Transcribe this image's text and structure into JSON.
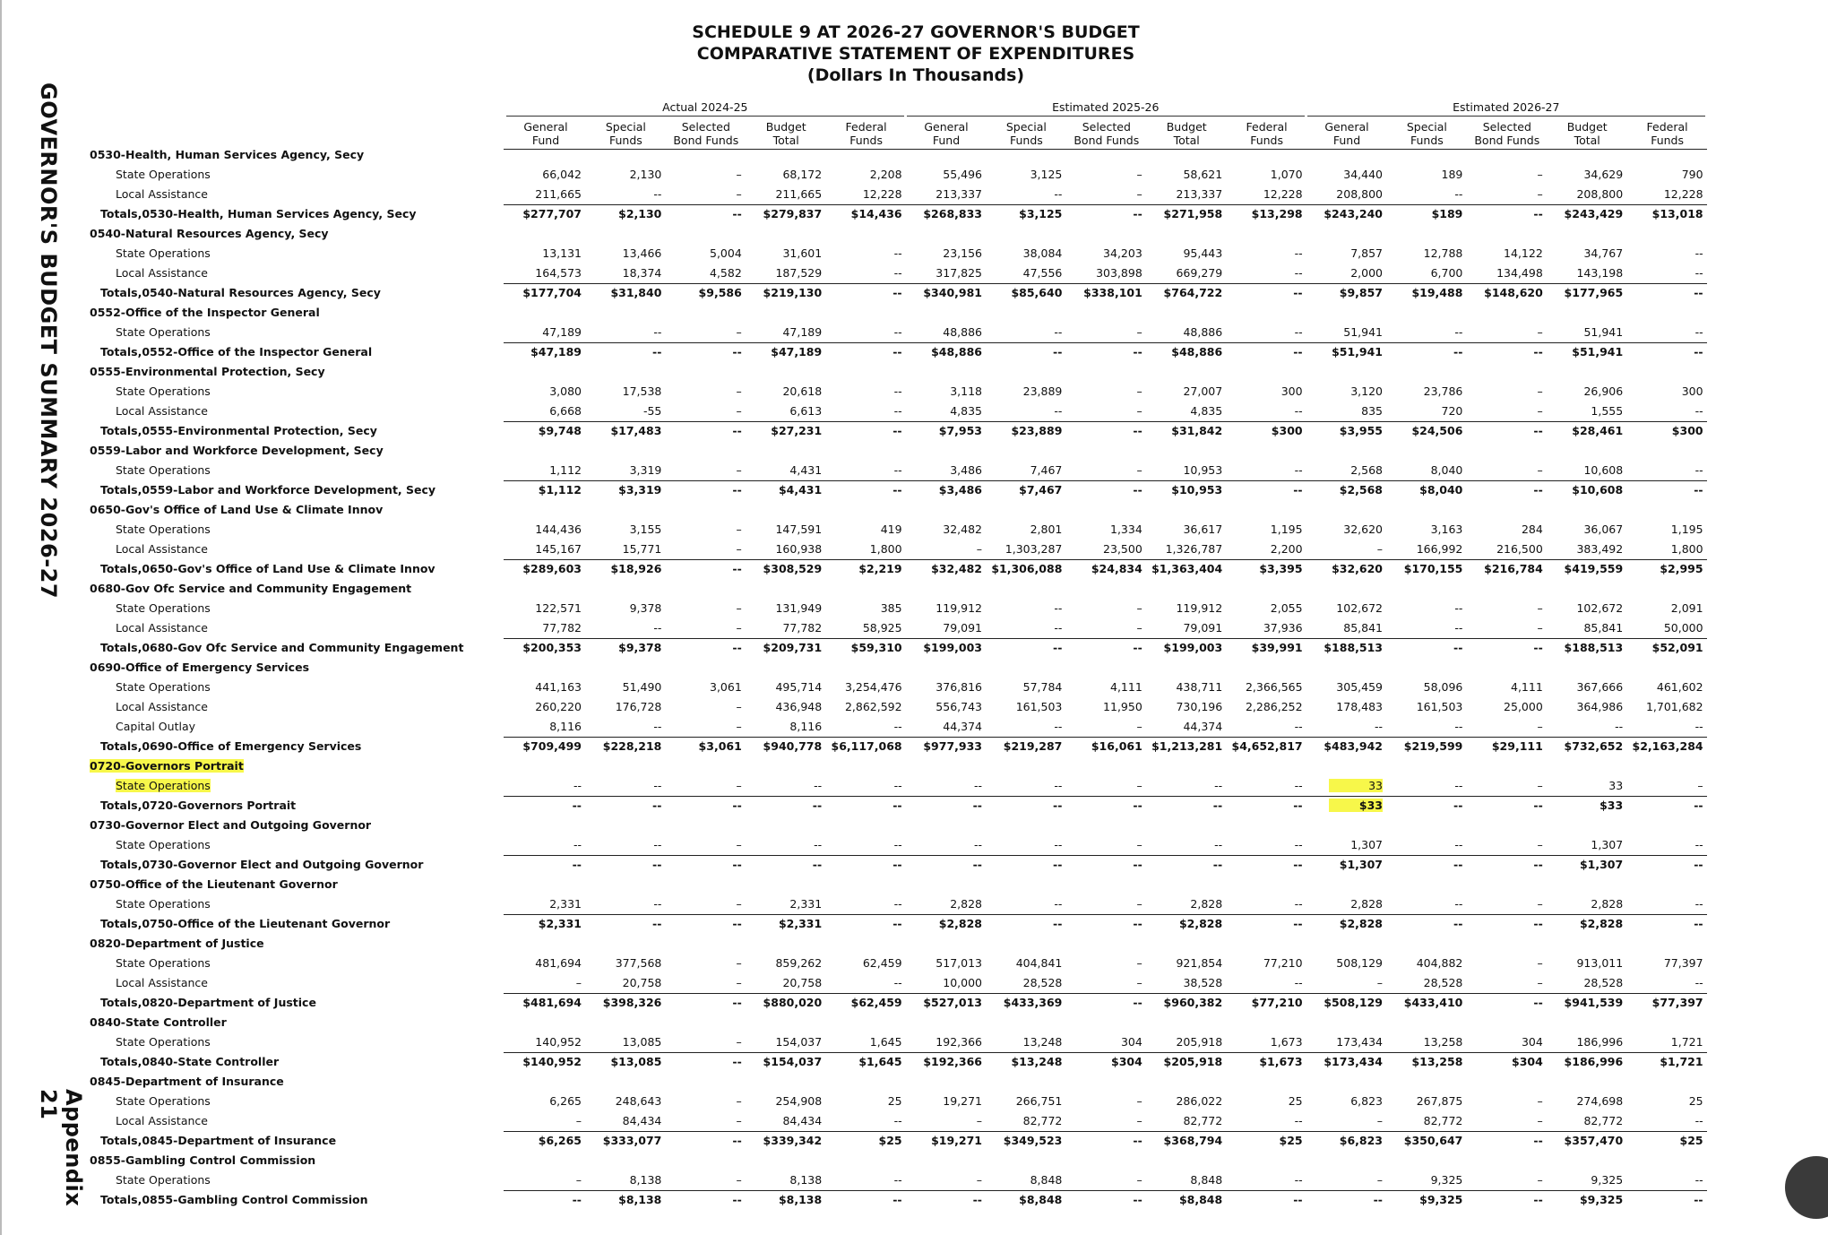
{
  "header": {
    "title": [
      "SCHEDULE 9 AT 2026-27 GOVERNOR'S BUDGET",
      "COMPARATIVE STATEMENT OF EXPENDITURES",
      "(Dollars In Thousands)"
    ],
    "side_title": "GOVERNOR'S BUDGET SUMMARY 2026-27",
    "appendix": "Appendix 21"
  },
  "table": {
    "groups": [
      "Actual 2024-25",
      "Estimated 2025-26",
      "Estimated 2026-27"
    ],
    "columns": [
      [
        "General",
        "Fund"
      ],
      [
        "Special",
        "Funds"
      ],
      [
        "Selected",
        "Bond Funds"
      ],
      [
        "Budget",
        "Total"
      ],
      [
        "Federal",
        "Funds"
      ]
    ],
    "sections": [
      {
        "title": "0530-Health, Human Services Agency, Secy",
        "lines": [
          {
            "label": "State Operations",
            "cells": [
              "66,042",
              "2,130",
              "–",
              "68,172",
              "2,208",
              "55,496",
              "3,125",
              "–",
              "58,621",
              "1,070",
              "34,440",
              "189",
              "–",
              "34,629",
              "790"
            ]
          },
          {
            "label": "Local Assistance",
            "cells": [
              "211,665",
              "--",
              "–",
              "211,665",
              "12,228",
              "213,337",
              "--",
              "–",
              "213,337",
              "12,228",
              "208,800",
              "--",
              "–",
              "208,800",
              "12,228"
            ]
          }
        ],
        "total": {
          "label": "Totals,0530-Health, Human Services Agency, Secy",
          "cells": [
            "$277,707",
            "$2,130",
            "--",
            "$279,837",
            "$14,436",
            "$268,833",
            "$3,125",
            "--",
            "$271,958",
            "$13,298",
            "$243,240",
            "$189",
            "--",
            "$243,429",
            "$13,018"
          ]
        }
      },
      {
        "title": "0540-Natural Resources Agency, Secy",
        "lines": [
          {
            "label": "State Operations",
            "cells": [
              "13,131",
              "13,466",
              "5,004",
              "31,601",
              "--",
              "23,156",
              "38,084",
              "34,203",
              "95,443",
              "--",
              "7,857",
              "12,788",
              "14,122",
              "34,767",
              "--"
            ]
          },
          {
            "label": "Local Assistance",
            "cells": [
              "164,573",
              "18,374",
              "4,582",
              "187,529",
              "--",
              "317,825",
              "47,556",
              "303,898",
              "669,279",
              "--",
              "2,000",
              "6,700",
              "134,498",
              "143,198",
              "--"
            ]
          }
        ],
        "total": {
          "label": "Totals,0540-Natural Resources Agency, Secy",
          "cells": [
            "$177,704",
            "$31,840",
            "$9,586",
            "$219,130",
            "--",
            "$340,981",
            "$85,640",
            "$338,101",
            "$764,722",
            "--",
            "$9,857",
            "$19,488",
            "$148,620",
            "$177,965",
            "--"
          ]
        }
      },
      {
        "title": "0552-Office of the Inspector General",
        "lines": [
          {
            "label": "State Operations",
            "cells": [
              "47,189",
              "--",
              "–",
              "47,189",
              "--",
              "48,886",
              "--",
              "–",
              "48,886",
              "--",
              "51,941",
              "--",
              "–",
              "51,941",
              "--"
            ]
          }
        ],
        "total": {
          "label": "Totals,0552-Office of the Inspector General",
          "cells": [
            "$47,189",
            "--",
            "--",
            "$47,189",
            "--",
            "$48,886",
            "--",
            "--",
            "$48,886",
            "--",
            "$51,941",
            "--",
            "--",
            "$51,941",
            "--"
          ]
        }
      },
      {
        "title": "0555-Environmental Protection, Secy",
        "lines": [
          {
            "label": "State Operations",
            "cells": [
              "3,080",
              "17,538",
              "–",
              "20,618",
              "--",
              "3,118",
              "23,889",
              "–",
              "27,007",
              "300",
              "3,120",
              "23,786",
              "–",
              "26,906",
              "300"
            ]
          },
          {
            "label": "Local Assistance",
            "cells": [
              "6,668",
              "-55",
              "–",
              "6,613",
              "--",
              "4,835",
              "--",
              "–",
              "4,835",
              "--",
              "835",
              "720",
              "–",
              "1,555",
              "--"
            ]
          }
        ],
        "total": {
          "label": "Totals,0555-Environmental Protection, Secy",
          "cells": [
            "$9,748",
            "$17,483",
            "--",
            "$27,231",
            "--",
            "$7,953",
            "$23,889",
            "--",
            "$31,842",
            "$300",
            "$3,955",
            "$24,506",
            "--",
            "$28,461",
            "$300"
          ]
        }
      },
      {
        "title": "0559-Labor and Workforce Development, Secy",
        "lines": [
          {
            "label": "State Operations",
            "cells": [
              "1,112",
              "3,319",
              "–",
              "4,431",
              "--",
              "3,486",
              "7,467",
              "–",
              "10,953",
              "--",
              "2,568",
              "8,040",
              "–",
              "10,608",
              "--"
            ]
          }
        ],
        "total": {
          "label": "Totals,0559-Labor and Workforce Development, Secy",
          "cells": [
            "$1,112",
            "$3,319",
            "--",
            "$4,431",
            "--",
            "$3,486",
            "$7,467",
            "--",
            "$10,953",
            "--",
            "$2,568",
            "$8,040",
            "--",
            "$10,608",
            "--"
          ]
        }
      },
      {
        "title": "0650-Gov's Office of Land Use & Climate Innov",
        "lines": [
          {
            "label": "State Operations",
            "cells": [
              "144,436",
              "3,155",
              "–",
              "147,591",
              "419",
              "32,482",
              "2,801",
              "1,334",
              "36,617",
              "1,195",
              "32,620",
              "3,163",
              "284",
              "36,067",
              "1,195"
            ]
          },
          {
            "label": "Local Assistance",
            "cells": [
              "145,167",
              "15,771",
              "–",
              "160,938",
              "1,800",
              "–",
              "1,303,287",
              "23,500",
              "1,326,787",
              "2,200",
              "–",
              "166,992",
              "216,500",
              "383,492",
              "1,800"
            ]
          }
        ],
        "total": {
          "label": "Totals,0650-Gov's Office of Land Use & Climate Innov",
          "cells": [
            "$289,603",
            "$18,926",
            "--",
            "$308,529",
            "$2,219",
            "$32,482",
            "$1,306,088",
            "$24,834",
            "$1,363,404",
            "$3,395",
            "$32,620",
            "$170,155",
            "$216,784",
            "$419,559",
            "$2,995"
          ]
        }
      },
      {
        "title": "0680-Gov Ofc Service and Community Engagement",
        "lines": [
          {
            "label": "State Operations",
            "cells": [
              "122,571",
              "9,378",
              "–",
              "131,949",
              "385",
              "119,912",
              "--",
              "–",
              "119,912",
              "2,055",
              "102,672",
              "--",
              "–",
              "102,672",
              "2,091"
            ]
          },
          {
            "label": "Local Assistance",
            "cells": [
              "77,782",
              "--",
              "–",
              "77,782",
              "58,925",
              "79,091",
              "--",
              "–",
              "79,091",
              "37,936",
              "85,841",
              "--",
              "–",
              "85,841",
              "50,000"
            ]
          }
        ],
        "total": {
          "label": "Totals,0680-Gov Ofc Service and Community Engagement",
          "cells": [
            "$200,353",
            "$9,378",
            "--",
            "$209,731",
            "$59,310",
            "$199,003",
            "--",
            "--",
            "$199,003",
            "$39,991",
            "$188,513",
            "--",
            "--",
            "$188,513",
            "$52,091"
          ]
        }
      },
      {
        "title": "0690-Office of Emergency Services",
        "lines": [
          {
            "label": "State Operations",
            "cells": [
              "441,163",
              "51,490",
              "3,061",
              "495,714",
              "3,254,476",
              "376,816",
              "57,784",
              "4,111",
              "438,711",
              "2,366,565",
              "305,459",
              "58,096",
              "4,111",
              "367,666",
              "461,602"
            ]
          },
          {
            "label": "Local Assistance",
            "cells": [
              "260,220",
              "176,728",
              "–",
              "436,948",
              "2,862,592",
              "556,743",
              "161,503",
              "11,950",
              "730,196",
              "2,286,252",
              "178,483",
              "161,503",
              "25,000",
              "364,986",
              "1,701,682"
            ]
          },
          {
            "label": "Capital Outlay",
            "cells": [
              "8,116",
              "--",
              "–",
              "8,116",
              "--",
              "44,374",
              "--",
              "–",
              "44,374",
              "--",
              "--",
              "--",
              "–",
              "--",
              "--"
            ]
          }
        ],
        "total": {
          "label": "Totals,0690-Office of Emergency Services",
          "cells": [
            "$709,499",
            "$228,218",
            "$3,061",
            "$940,778",
            "$6,117,068",
            "$977,933",
            "$219,287",
            "$16,061",
            "$1,213,281",
            "$4,652,817",
            "$483,942",
            "$219,599",
            "$29,111",
            "$732,652",
            "$2,163,284"
          ]
        }
      },
      {
        "title": "0720-Governors Portrait",
        "lines": [
          {
            "label": "State Operations",
            "cells": [
              "--",
              "--",
              "–",
              "--",
              "--",
              "--",
              "--",
              "–",
              "--",
              "--",
              "33",
              "--",
              "–",
              "33",
              "–"
            ]
          }
        ],
        "total": {
          "label": "Totals,0720-Governors Portrait",
          "cells": [
            "--",
            "--",
            "--",
            "--",
            "--",
            "--",
            "--",
            "--",
            "--",
            "--",
            "$33",
            "--",
            "--",
            "$33",
            "--"
          ]
        }
      },
      {
        "title": "0730-Governor Elect and Outgoing Governor",
        "lines": [
          {
            "label": "State Operations",
            "cells": [
              "--",
              "--",
              "–",
              "--",
              "--",
              "--",
              "--",
              "–",
              "--",
              "--",
              "1,307",
              "--",
              "–",
              "1,307",
              "--"
            ]
          }
        ],
        "total": {
          "label": "Totals,0730-Governor Elect and Outgoing Governor",
          "cells": [
            "--",
            "--",
            "--",
            "--",
            "--",
            "--",
            "--",
            "--",
            "--",
            "--",
            "$1,307",
            "--",
            "--",
            "$1,307",
            "--"
          ]
        }
      },
      {
        "title": "0750-Office of the Lieutenant Governor",
        "lines": [
          {
            "label": "State Operations",
            "cells": [
              "2,331",
              "--",
              "–",
              "2,331",
              "--",
              "2,828",
              "--",
              "–",
              "2,828",
              "--",
              "2,828",
              "--",
              "–",
              "2,828",
              "--"
            ]
          }
        ],
        "total": {
          "label": "Totals,0750-Office of the Lieutenant Governor",
          "cells": [
            "$2,331",
            "--",
            "--",
            "$2,331",
            "--",
            "$2,828",
            "--",
            "--",
            "$2,828",
            "--",
            "$2,828",
            "--",
            "--",
            "$2,828",
            "--"
          ]
        }
      },
      {
        "title": "0820-Department of Justice",
        "lines": [
          {
            "label": "State Operations",
            "cells": [
              "481,694",
              "377,568",
              "–",
              "859,262",
              "62,459",
              "517,013",
              "404,841",
              "–",
              "921,854",
              "77,210",
              "508,129",
              "404,882",
              "–",
              "913,011",
              "77,397"
            ]
          },
          {
            "label": "Local Assistance",
            "cells": [
              "–",
              "20,758",
              "–",
              "20,758",
              "--",
              "10,000",
              "28,528",
              "–",
              "38,528",
              "--",
              "–",
              "28,528",
              "–",
              "28,528",
              "--"
            ]
          }
        ],
        "total": {
          "label": "Totals,0820-Department of Justice",
          "cells": [
            "$481,694",
            "$398,326",
            "--",
            "$880,020",
            "$62,459",
            "$527,013",
            "$433,369",
            "--",
            "$960,382",
            "$77,210",
            "$508,129",
            "$433,410",
            "--",
            "$941,539",
            "$77,397"
          ]
        }
      },
      {
        "title": "0840-State Controller",
        "lines": [
          {
            "label": "State Operations",
            "cells": [
              "140,952",
              "13,085",
              "–",
              "154,037",
              "1,645",
              "192,366",
              "13,248",
              "304",
              "205,918",
              "1,673",
              "173,434",
              "13,258",
              "304",
              "186,996",
              "1,721"
            ]
          }
        ],
        "total": {
          "label": "Totals,0840-State Controller",
          "cells": [
            "$140,952",
            "$13,085",
            "--",
            "$154,037",
            "$1,645",
            "$192,366",
            "$13,248",
            "$304",
            "$205,918",
            "$1,673",
            "$173,434",
            "$13,258",
            "$304",
            "$186,996",
            "$1,721"
          ]
        }
      },
      {
        "title": "0845-Department of Insurance",
        "lines": [
          {
            "label": "State Operations",
            "cells": [
              "6,265",
              "248,643",
              "–",
              "254,908",
              "25",
              "19,271",
              "266,751",
              "–",
              "286,022",
              "25",
              "6,823",
              "267,875",
              "–",
              "274,698",
              "25"
            ]
          },
          {
            "label": "Local Assistance",
            "cells": [
              "–",
              "84,434",
              "–",
              "84,434",
              "--",
              "–",
              "82,772",
              "–",
              "82,772",
              "--",
              "–",
              "82,772",
              "–",
              "82,772",
              "--"
            ]
          }
        ],
        "total": {
          "label": "Totals,0845-Department of Insurance",
          "cells": [
            "$6,265",
            "$333,077",
            "--",
            "$339,342",
            "$25",
            "$19,271",
            "$349,523",
            "--",
            "$368,794",
            "$25",
            "$6,823",
            "$350,647",
            "--",
            "$357,470",
            "$25"
          ]
        }
      },
      {
        "title": "0855-Gambling Control Commission",
        "lines": [
          {
            "label": "State Operations",
            "cells": [
              "–",
              "8,138",
              "–",
              "8,138",
              "--",
              "–",
              "8,848",
              "–",
              "8,848",
              "--",
              "–",
              "9,325",
              "–",
              "9,325",
              "--"
            ]
          }
        ],
        "total": {
          "label": "Totals,0855-Gambling Control Commission",
          "cells": [
            "--",
            "$8,138",
            "--",
            "$8,138",
            "--",
            "--",
            "$8,848",
            "--",
            "$8,848",
            "--",
            "--",
            "$9,325",
            "--",
            "$9,325",
            "--"
          ]
        }
      }
    ]
  }
}
